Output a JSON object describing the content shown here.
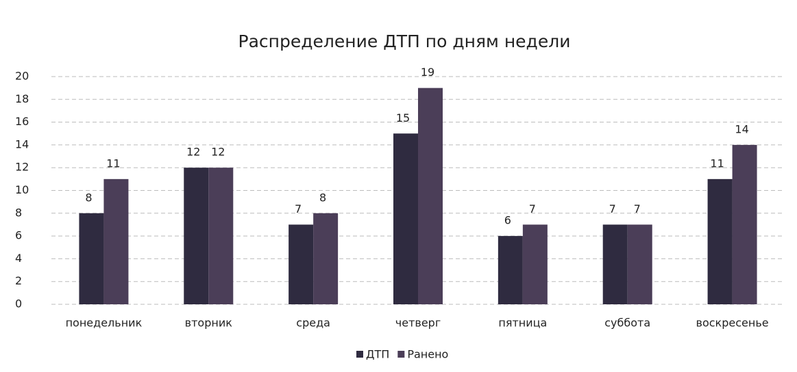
{
  "chart_data": {
    "type": "bar",
    "title": "Распределение ДТП по дням недели",
    "categories": [
      "понедельник",
      "вторник",
      "среда",
      "четверг",
      "пятница",
      "суббота",
      "воскресенье"
    ],
    "series": [
      {
        "name": "ДТП",
        "color": "#2f2b40",
        "values": [
          8,
          12,
          7,
          15,
          6,
          7,
          11
        ]
      },
      {
        "name": "Ранено",
        "color": "#4b3e58",
        "values": [
          11,
          12,
          8,
          19,
          7,
          7,
          14
        ]
      }
    ],
    "ylim": [
      0,
      20
    ],
    "yticks": [
      0,
      2,
      4,
      6,
      8,
      10,
      12,
      14,
      16,
      18,
      20
    ],
    "grid": true,
    "legend": "bottom"
  }
}
